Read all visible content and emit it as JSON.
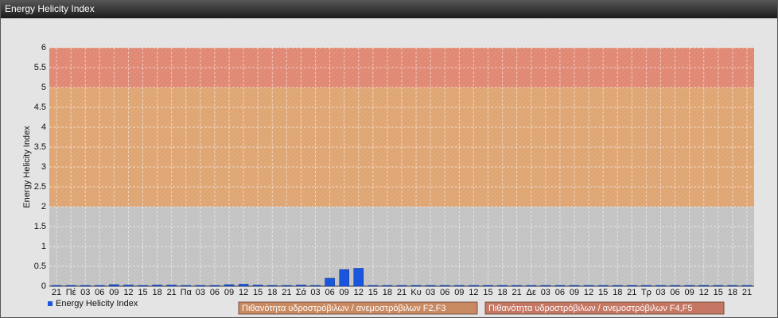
{
  "chart_data": {
    "type": "bar",
    "title": "Energy Helicity Index",
    "y_label": "Energy Helicity Index",
    "categories": [
      "21",
      "Πέ",
      "03",
      "06",
      "09",
      "12",
      "15",
      "18",
      "21",
      "Πα",
      "03",
      "06",
      "09",
      "12",
      "15",
      "18",
      "21",
      "Σά",
      "03",
      "06",
      "09",
      "12",
      "15",
      "18",
      "21",
      "Κυ",
      "03",
      "06",
      "09",
      "12",
      "15",
      "18",
      "21",
      "Δε",
      "03",
      "06",
      "09",
      "12",
      "15",
      "18",
      "21",
      "Τρ",
      "03",
      "06",
      "09",
      "12",
      "15",
      "18",
      "21"
    ],
    "series": [
      {
        "name": "Energy Helicity Index",
        "color": "#1a55dd",
        "values": [
          0.02,
          0.02,
          0.02,
          0.02,
          0.04,
          0.03,
          0.02,
          0.03,
          0.03,
          0.02,
          0.02,
          0.02,
          0.04,
          0.05,
          0.03,
          0.02,
          0.02,
          0.03,
          0.02,
          0.2,
          0.42,
          0.45,
          0.02,
          0.02,
          0.02,
          0.02,
          0.02,
          0.02,
          0.02,
          0.02,
          0.02,
          0.02,
          0.02,
          0.02,
          0.02,
          0.02,
          0.02,
          0.02,
          0.02,
          0.02,
          0.02,
          0.02,
          0.02,
          0.02,
          0.02,
          0.02,
          0.02,
          0.02,
          0.02
        ]
      }
    ],
    "bands": [
      {
        "from": 0,
        "to": 2,
        "color": "#c3c3c3"
      },
      {
        "from": 2,
        "to": 5,
        "color": "#dfa573",
        "legend_color": "#c98a62",
        "label": "Πιθανότητα υδροστρόβιλων / ανεμοστρόβιλων F2,F3"
      },
      {
        "from": 5,
        "to": 6,
        "color": "#e08873",
        "legend_color": "#c57763",
        "label": "Πιθανότητα υδροστρόβιλων / ανεμοστρόβιλων F4,F5"
      }
    ],
    "ylim": [
      0,
      6
    ],
    "yticks": [
      0,
      0.5,
      1,
      1.5,
      2,
      2.5,
      3,
      3.5,
      4,
      4.5,
      5,
      5.5,
      6
    ],
    "grid": true
  }
}
